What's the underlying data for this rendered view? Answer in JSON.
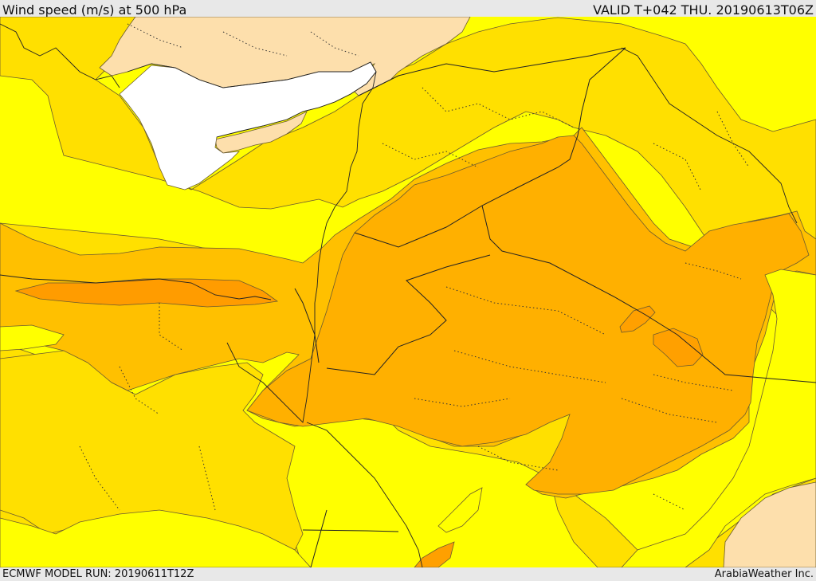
{
  "header": {
    "title": "Wind speed (m/s) at 500 hPa",
    "valid_time": "VALID T+042 THU. 20190613T06Z"
  },
  "footer": {
    "model_run": "ECMWF MODEL RUN: 20190611T12Z",
    "credit": "ArabiaWeather Inc."
  },
  "colors": {
    "sea": "#ffffff",
    "low_wind_land": "#fddfac",
    "band_1": "#ffff00",
    "band_2": "#ffe000",
    "band_3": "#ffc000",
    "band_4": "#ffb000",
    "band_5": "#ff9c00"
  }
}
